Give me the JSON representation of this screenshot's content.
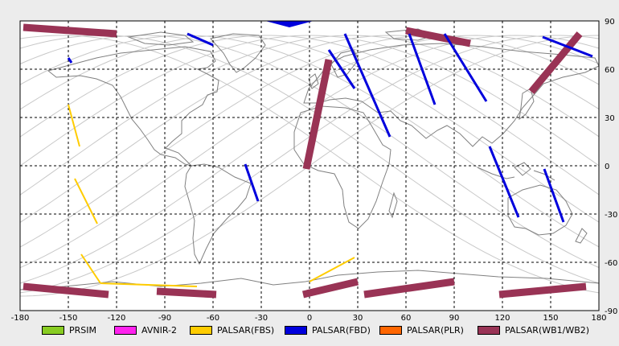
{
  "map": {
    "lon_ticks": [
      "-180",
      "-150",
      "-120",
      "-90",
      "-60",
      "-30",
      "0",
      "30",
      "60",
      "90",
      "120",
      "150",
      "180"
    ],
    "lat_ticks": [
      "90",
      "60",
      "30",
      "0",
      "-30",
      "-60",
      "-90"
    ],
    "lon_range": [
      -180,
      180
    ],
    "lat_range": [
      -90,
      90
    ],
    "grid": "dashed every 30 degrees"
  },
  "legend": [
    {
      "label": "PRSIM",
      "color": "#88cc22"
    },
    {
      "label": "AVNIR-2",
      "color": "#ff22ee"
    },
    {
      "label": "PALSAR(FBS)",
      "color": "#ffcc00"
    },
    {
      "label": "PALSAR(FBD)",
      "color": "#0000dd"
    },
    {
      "label": "PALSAR(PLR)",
      "color": "#ff6600"
    },
    {
      "label": "PALSAR(WB1/WB2)",
      "color": "#993355"
    }
  ],
  "colors": {
    "background": "#ffffff",
    "coastline": "#808080",
    "orbit": "#c8c8c8",
    "grid": "#000000"
  },
  "swaths": {
    "wb": [
      {
        "lon": [
          -178,
          -120
        ],
        "lat": [
          86,
          82
        ]
      },
      {
        "lon": [
          -178,
          -125
        ],
        "lat": [
          -75,
          -80
        ]
      },
      {
        "lon": [
          -95,
          -58
        ],
        "lat": [
          -78,
          -80
        ]
      },
      {
        "lon": [
          -4,
          30
        ],
        "lat": [
          -80,
          -72
        ]
      },
      {
        "lon": [
          34,
          90
        ],
        "lat": [
          -80,
          -72
        ]
      },
      {
        "lon": [
          118,
          172
        ],
        "lat": [
          -80,
          -75
        ]
      },
      {
        "lon": [
          -2,
          12
        ],
        "lat": [
          -2,
          66
        ]
      },
      {
        "lon": [
          60,
          100
        ],
        "lat": [
          84,
          76
        ]
      },
      {
        "lon": [
          138,
          168
        ],
        "lat": [
          46,
          82
        ]
      }
    ],
    "fbd": [
      {
        "lon": [
          -150,
          -148
        ],
        "lat": [
          67,
          64
        ]
      },
      {
        "lon": [
          -76,
          -60
        ],
        "lat": [
          82,
          75
        ]
      },
      {
        "lon": [
          -40,
          -32
        ],
        "lat": [
          1,
          -22
        ]
      },
      {
        "lon": [
          12,
          28
        ],
        "lat": [
          72,
          48
        ]
      },
      {
        "lon": [
          22,
          50
        ],
        "lat": [
          82,
          18
        ]
      },
      {
        "lon": [
          62,
          78
        ],
        "lat": [
          82,
          38
        ]
      },
      {
        "lon": [
          84,
          110
        ],
        "lat": [
          82,
          40
        ]
      },
      {
        "lon": [
          112,
          130
        ],
        "lat": [
          12,
          -32
        ]
      },
      {
        "lon": [
          146,
          158
        ],
        "lat": [
          -2,
          -35
        ]
      },
      {
        "lon": [
          145,
          176
        ],
        "lat": [
          80,
          68
        ]
      }
    ],
    "fbs": [
      {
        "lon": [
          -142,
          -130
        ],
        "lat": [
          -55,
          -73
        ]
      },
      {
        "lon": [
          -130,
          -70
        ],
        "lat": [
          -73,
          -75
        ]
      },
      {
        "lon": [
          0,
          28
        ],
        "lat": [
          -72,
          -57
        ]
      },
      {
        "lon": [
          -150,
          -143
        ],
        "lat": [
          38,
          12
        ]
      },
      {
        "lon": [
          -146,
          -132
        ],
        "lat": [
          -8,
          -36
        ]
      }
    ]
  }
}
